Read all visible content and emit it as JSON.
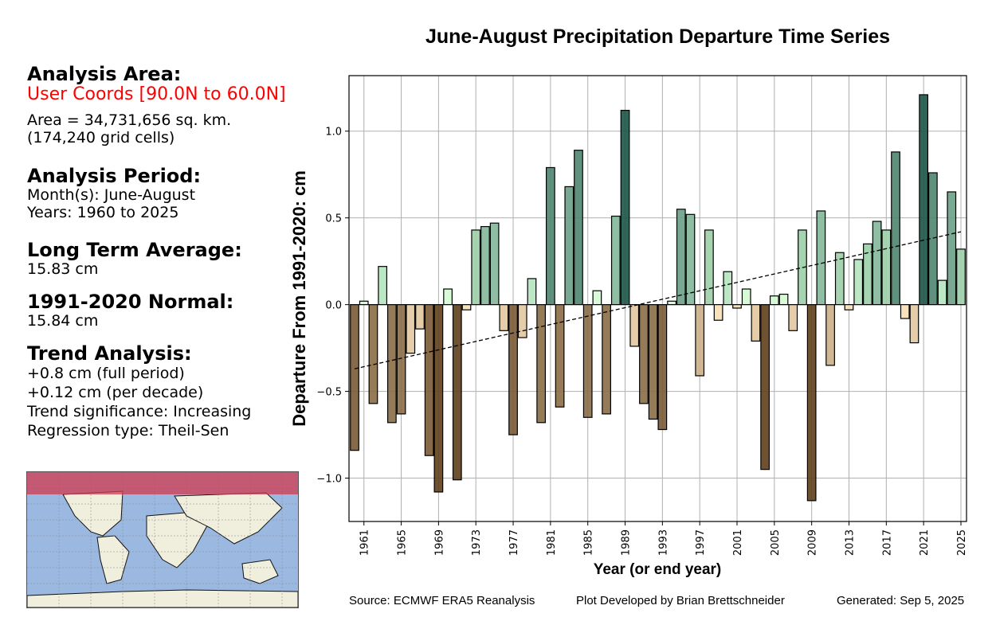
{
  "sidebar": {
    "area_heading": "Analysis Area:",
    "area_name": "User Coords [90.0N to 60.0N]",
    "area_size": "Area = 34,731,656 sq. km.",
    "grid_cells": "(174,240 grid cells)",
    "period_heading": "Analysis Period:",
    "months": "Month(s): June-August",
    "years": "Years: 1960 to 2025",
    "lta_heading": "Long Term Average:",
    "lta_value": "15.83 cm",
    "normal_heading": "1991-2020 Normal:",
    "normal_value": "15.84 cm",
    "trend_heading": "Trend Analysis:",
    "trend_full": "+0.8 cm (full period)",
    "trend_decade": "+0.12 cm (per decade)",
    "trend_sig": "Trend significance: Increasing",
    "regression": "Regression type: Theil-Sen"
  },
  "map": {
    "label": "world-map-thumbnail",
    "highlight_color": "#c8505f",
    "ocean_color": "#9bb8e0",
    "land_color": "#f0eedc"
  },
  "footer": {
    "source": "Source: ECMWF ERA5 Reanalysis",
    "developer": "Plot Developed by Brian Brettschneider",
    "generated": "Generated: Sep 5, 2025"
  },
  "chart_data": {
    "type": "bar",
    "title": "June-August Precipitation Departure Time Series",
    "xlabel": "Year (or end year)",
    "ylabel": "Departure From 1991-2020:  cm",
    "ylim": [
      -1.25,
      1.32
    ],
    "xlim": [
      1959.4,
      2025.6
    ],
    "yticks": [
      -1.0,
      -0.5,
      0.0,
      0.5,
      1.0
    ],
    "ytick_labels": [
      "−1.0",
      "−0.5",
      "0.0",
      "0.5",
      "1.0"
    ],
    "xticks": [
      1961,
      1965,
      1969,
      1973,
      1977,
      1981,
      1985,
      1989,
      1993,
      1997,
      2001,
      2005,
      2009,
      2013,
      2017,
      2021,
      2025
    ],
    "grid": true,
    "x": [
      1960,
      1961,
      1962,
      1963,
      1964,
      1965,
      1966,
      1967,
      1968,
      1969,
      1970,
      1971,
      1972,
      1973,
      1974,
      1975,
      1976,
      1977,
      1978,
      1979,
      1980,
      1981,
      1982,
      1983,
      1984,
      1985,
      1986,
      1987,
      1988,
      1989,
      1990,
      1991,
      1992,
      1993,
      1994,
      1995,
      1996,
      1997,
      1998,
      1999,
      2000,
      2001,
      2002,
      2003,
      2004,
      2005,
      2006,
      2007,
      2008,
      2009,
      2010,
      2011,
      2012,
      2013,
      2014,
      2015,
      2016,
      2017,
      2018,
      2019,
      2020,
      2021,
      2022,
      2023,
      2024,
      2025
    ],
    "values": [
      -0.84,
      0.02,
      -0.57,
      0.22,
      -0.68,
      -0.63,
      -0.28,
      -0.14,
      -0.87,
      -1.08,
      0.09,
      -1.01,
      -0.03,
      0.43,
      0.45,
      0.47,
      -0.15,
      -0.75,
      -0.19,
      0.15,
      -0.68,
      0.79,
      -0.59,
      0.68,
      0.89,
      -0.65,
      0.08,
      -0.63,
      0.51,
      1.12,
      -0.24,
      -0.57,
      -0.66,
      -0.72,
      0.02,
      0.55,
      0.52,
      -0.41,
      0.43,
      -0.09,
      0.19,
      -0.02,
      0.09,
      -0.21,
      -0.95,
      0.05,
      0.06,
      -0.15,
      0.43,
      -1.13,
      0.54,
      -0.35,
      0.3,
      -0.03,
      0.26,
      0.35,
      0.48,
      0.43,
      0.88,
      -0.08,
      -0.22,
      1.21,
      0.76,
      0.14,
      0.65,
      0.32
    ],
    "trend": {
      "type": "Theil-Sen",
      "start": [
        1960,
        -0.37
      ],
      "end": [
        2025,
        0.42
      ],
      "style": "dashed"
    },
    "colors": {
      "dry": [
        "#f7dfb5",
        "#e2c8a0",
        "#ccb089",
        "#a4865f",
        "#8b6d47",
        "#7a5a35",
        "#5e3f1c"
      ],
      "wet": [
        "#d3fbd3",
        "#b5e4be",
        "#9ccfa8",
        "#84b79a",
        "#6b9f86",
        "#4e8570",
        "#1b5446"
      ]
    }
  }
}
